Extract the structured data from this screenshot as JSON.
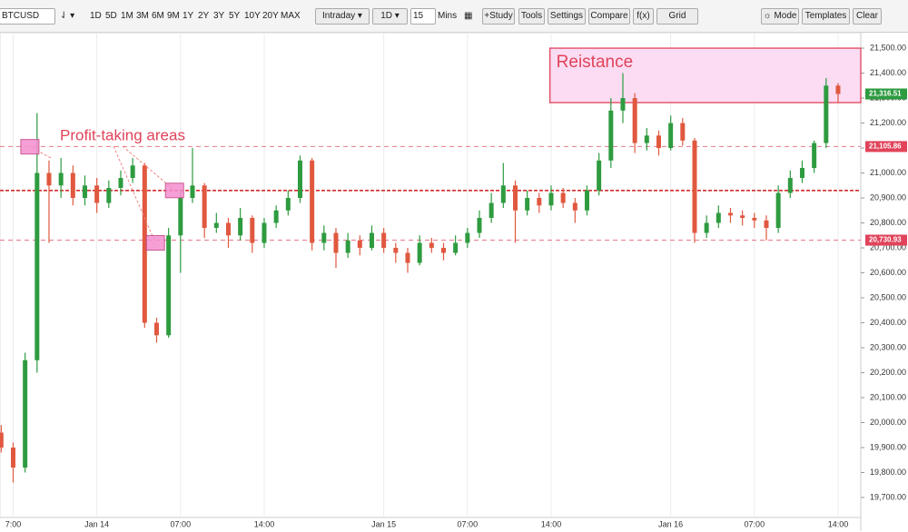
{
  "toolbar": {
    "symbol": "BTCUSD",
    "periods": [
      "1D",
      "5D",
      "1M",
      "3M",
      "6M",
      "9M",
      "1Y",
      "2Y",
      "3Y",
      "5Y",
      "10Y",
      "20Y",
      "MAX"
    ],
    "interval_type": "Intraday",
    "interval_range": "1D",
    "interval_value": "15",
    "interval_unit": "Mins",
    "buttons": [
      "+Study",
      "Tools",
      "Settings",
      "Compare",
      "f(x)",
      "Grid"
    ],
    "right_buttons": [
      "Mode",
      "Templates",
      "Clear"
    ]
  },
  "chart_data": {
    "type": "candlestick",
    "x": [
      -1,
      0,
      1,
      2,
      3,
      4,
      5,
      6,
      7,
      8,
      9,
      10,
      11,
      12,
      13,
      14,
      15,
      16,
      17,
      18,
      19,
      20,
      21,
      22,
      23,
      24,
      25,
      26,
      27,
      28,
      29,
      30,
      31,
      32,
      33,
      34,
      35,
      36,
      37,
      38,
      39,
      40,
      41,
      42,
      43,
      44,
      45,
      46,
      47,
      48,
      49,
      50,
      51,
      52,
      53,
      54,
      55,
      56,
      57,
      58,
      59,
      60,
      61,
      62,
      63,
      64,
      65,
      66,
      67,
      68,
      69
    ],
    "open": [
      19960,
      19900,
      19820,
      20250,
      21000,
      20950,
      21000,
      20900,
      20950,
      20880,
      20940,
      20980,
      21030,
      20400,
      20350,
      20750,
      20900,
      20950,
      20780,
      20800,
      20750,
      20820,
      20720,
      20800,
      20850,
      20900,
      21050,
      20720,
      20760,
      20680,
      20730,
      20700,
      20760,
      20700,
      20680,
      20640,
      20720,
      20700,
      20680,
      20720,
      20760,
      20820,
      20880,
      20950,
      20850,
      20900,
      20870,
      20920,
      20880,
      20850,
      20930,
      21050,
      21250,
      21300,
      21120,
      21150,
      21100,
      21200,
      21130,
      20760,
      20800,
      20840,
      20830,
      20820,
      20810,
      20780,
      20920,
      20980,
      21020,
      21120,
      21350
    ],
    "high": [
      19990,
      19920,
      20280,
      21240,
      21050,
      21060,
      21030,
      20990,
      20980,
      20970,
      21010,
      21060,
      21040,
      20420,
      20780,
      20930,
      21100,
      20960,
      20840,
      20820,
      20860,
      20830,
      20820,
      20870,
      20930,
      21070,
      21060,
      20790,
      20780,
      20760,
      20750,
      20790,
      20780,
      20720,
      20700,
      20750,
      20740,
      20720,
      20750,
      20780,
      20850,
      20920,
      21040,
      20970,
      20930,
      20920,
      20950,
      20940,
      20900,
      20950,
      21080,
      21300,
      21400,
      21320,
      21180,
      21170,
      21230,
      21220,
      21140,
      20830,
      20870,
      20860,
      20850,
      20840,
      20830,
      20950,
      21010,
      21050,
      21130,
      21380,
      21360
    ],
    "low": [
      19880,
      19760,
      19800,
      20200,
      20720,
      20900,
      20870,
      20870,
      20840,
      20860,
      20910,
      20960,
      20380,
      20320,
      20340,
      20600,
      20880,
      20740,
      20760,
      20700,
      20730,
      20680,
      20700,
      20780,
      20830,
      20880,
      20690,
      20690,
      20620,
      20660,
      20670,
      20690,
      20680,
      20640,
      20600,
      20630,
      20680,
      20650,
      20670,
      20700,
      20740,
      20800,
      20860,
      20720,
      20830,
      20840,
      20850,
      20860,
      20800,
      20830,
      20910,
      21020,
      21200,
      21080,
      21090,
      21070,
      21090,
      21110,
      20720,
      20740,
      20780,
      20800,
      20790,
      20780,
      20730,
      20760,
      20900,
      20960,
      21000,
      21100,
      21280
    ],
    "close": [
      19900,
      19820,
      20250,
      21000,
      20950,
      21000,
      20900,
      20950,
      20880,
      20940,
      20980,
      21030,
      20400,
      20350,
      20750,
      20900,
      20950,
      20780,
      20800,
      20750,
      20820,
      20720,
      20800,
      20850,
      20900,
      21050,
      20720,
      20760,
      20680,
      20730,
      20700,
      20760,
      20700,
      20680,
      20640,
      20720,
      20700,
      20680,
      20720,
      20760,
      20820,
      20880,
      20950,
      20850,
      20900,
      20870,
      20920,
      20880,
      20850,
      20930,
      21050,
      21250,
      21300,
      21120,
      21150,
      21100,
      21200,
      21130,
      20760,
      20800,
      20840,
      20830,
      20820,
      20810,
      20780,
      20920,
      20980,
      21020,
      21120,
      21350,
      21316.51
    ],
    "up_color": "#2e9b3f",
    "down_color": "#e0583f",
    "xlim": [
      -1.1,
      70.9
    ],
    "ylim": [
      19620,
      21562
    ],
    "xticks": [
      {
        "value": 0,
        "label": "7:00"
      },
      {
        "value": 7,
        "label": "Jan 14"
      },
      {
        "value": 14,
        "label": "07:00"
      },
      {
        "value": 21,
        "label": "14:00"
      },
      {
        "value": 31,
        "label": "Jan 15"
      },
      {
        "value": 38,
        "label": "07:00"
      },
      {
        "value": 45,
        "label": "14:00"
      },
      {
        "value": 55,
        "label": "Jan 16"
      },
      {
        "value": 62,
        "label": "07:00"
      },
      {
        "value": 69,
        "label": "14:00"
      }
    ],
    "yticks": [
      {
        "value": 19700,
        "label": "19,700.00"
      },
      {
        "value": 19800,
        "label": "19,800.00"
      },
      {
        "value": 19900,
        "label": "19,900.00"
      },
      {
        "value": 20000,
        "label": "20,000.00"
      },
      {
        "value": 20100,
        "label": "20,100.00"
      },
      {
        "value": 20200,
        "label": "20,200.00"
      },
      {
        "value": 20300,
        "label": "20,300.00"
      },
      {
        "value": 20400,
        "label": "20,400.00"
      },
      {
        "value": 20500,
        "label": "20,500.00"
      },
      {
        "value": 20600,
        "label": "20,600.00"
      },
      {
        "value": 20700,
        "label": "20,700.00"
      },
      {
        "value": 20800,
        "label": "20,800.00"
      },
      {
        "value": 20900,
        "label": "20,900.00"
      },
      {
        "value": 21000,
        "label": "21,000.00"
      },
      {
        "value": 21100,
        "label": "21,100.00"
      },
      {
        "value": 21200,
        "label": "21,200.00"
      },
      {
        "value": 21300,
        "label": "21,300.00"
      },
      {
        "value": 21400,
        "label": "21,400.00"
      },
      {
        "value": 21500,
        "label": "21,500.00"
      }
    ],
    "grid": "x",
    "last_price": {
      "value": 21316.51,
      "label": "21,316.51",
      "color": "#2e9b3f"
    },
    "price_lines": [
      {
        "value": 21105.86,
        "label": "21,105.86",
        "color": "#e0435a"
      },
      {
        "value": 20930,
        "color": "#d32f2f"
      },
      {
        "value": 20730.93,
        "label": "20,730.93",
        "color": "#e0435a"
      }
    ],
    "zone": {
      "label": "Reistance",
      "x0": 44.9,
      "x1": 70.9,
      "y0": 21282,
      "y1": 21500,
      "color": "#e0435a"
    },
    "note": {
      "text": "Profit-taking areas",
      "markers": [
        {
          "x": 1.4,
          "y": 21105
        },
        {
          "x": 11.9,
          "y": 20720
        },
        {
          "x": 13.5,
          "y": 20930
        }
      ]
    }
  }
}
